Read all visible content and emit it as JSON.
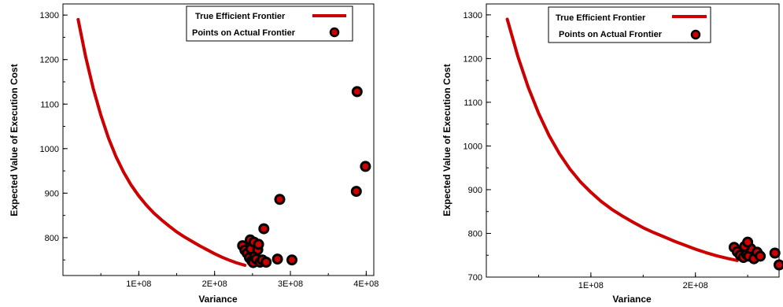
{
  "chart_data": [
    {
      "type": "scatter",
      "title": "",
      "xlabel": "Variance",
      "ylabel": "Expected Value of Execution Cost",
      "xlim": [
        0,
        410000000
      ],
      "ylim": [
        715,
        1325
      ],
      "xticks": [
        100000000,
        200000000,
        300000000,
        400000000
      ],
      "xtick_labels": [
        "1E+08",
        "2E+08",
        "3E+08",
        "4E+08"
      ],
      "yticks": [
        800,
        900,
        1000,
        1100,
        1200,
        1300
      ],
      "ytick_labels": [
        "800",
        "900",
        "1000",
        "1100",
        "1200",
        "1300"
      ],
      "grid": false,
      "legend_position": "top-right",
      "series": [
        {
          "name": "True Efficient Frontier",
          "kind": "line",
          "color": "#cc0000",
          "x": [
            20000000,
            30000000,
            40000000,
            50000000,
            60000000,
            70000000,
            80000000,
            90000000,
            100000000,
            110000000,
            120000000,
            130000000,
            140000000,
            150000000,
            160000000,
            170000000,
            180000000,
            190000000,
            200000000,
            210000000,
            220000000,
            230000000,
            240000000
          ],
          "y": [
            1290,
            1206,
            1135,
            1075,
            1024,
            982,
            947,
            918,
            894,
            873,
            855,
            840,
            826,
            813,
            802,
            792,
            782,
            773,
            764,
            756,
            749,
            743,
            738
          ]
        },
        {
          "name": "Points on Actual Frontier",
          "kind": "scatter",
          "color": "#cc0000",
          "edge_color": "#000000",
          "x": [
            237000000,
            240000000,
            243000000,
            246000000,
            249000000,
            251000000,
            253000000,
            248000000,
            255000000,
            257000000,
            260000000,
            263000000,
            247000000,
            252000000,
            258000000,
            265000000,
            268000000,
            283000000,
            302000000,
            286000000,
            387000000,
            388000000,
            399000000
          ],
          "y": [
            782,
            772,
            765,
            755,
            748,
            744,
            760,
            775,
            752,
            773,
            745,
            750,
            795,
            790,
            785,
            820,
            745,
            752,
            750,
            886,
            904,
            1128,
            960
          ]
        }
      ]
    },
    {
      "type": "scatter",
      "title": "",
      "xlabel": "Variance",
      "ylabel": "Expected Value of Execution Cost",
      "xlim": [
        0,
        280000000
      ],
      "ylim": [
        700,
        1325
      ],
      "xticks": [
        100000000,
        200000000
      ],
      "xtick_labels": [
        "1E+08",
        "2E+08"
      ],
      "yticks": [
        700,
        800,
        900,
        1000,
        1100,
        1200,
        1300
      ],
      "ytick_labels": [
        "700",
        "800",
        "900",
        "1000",
        "1100",
        "1200",
        "1300"
      ],
      "grid": false,
      "legend_position": "top-right",
      "series": [
        {
          "name": "True Efficient Frontier",
          "kind": "line",
          "color": "#cc0000",
          "x": [
            20000000,
            30000000,
            40000000,
            50000000,
            60000000,
            70000000,
            80000000,
            90000000,
            100000000,
            110000000,
            120000000,
            130000000,
            140000000,
            150000000,
            160000000,
            170000000,
            180000000,
            190000000,
            200000000,
            210000000,
            220000000,
            230000000,
            240000000
          ],
          "y": [
            1290,
            1206,
            1135,
            1075,
            1024,
            982,
            947,
            918,
            894,
            873,
            855,
            840,
            826,
            813,
            802,
            792,
            782,
            773,
            764,
            756,
            749,
            743,
            738
          ]
        },
        {
          "name": "Points on Actual Frontier",
          "kind": "scatter",
          "color": "#cc0000",
          "edge_color": "#000000",
          "x": [
            237000000,
            240000000,
            243000000,
            246000000,
            249000000,
            251000000,
            253000000,
            256000000,
            259000000,
            247000000,
            250000000,
            262000000,
            276000000,
            280000000
          ],
          "y": [
            768,
            758,
            750,
            745,
            752,
            748,
            765,
            742,
            757,
            770,
            780,
            748,
            755,
            728
          ]
        }
      ]
    }
  ]
}
